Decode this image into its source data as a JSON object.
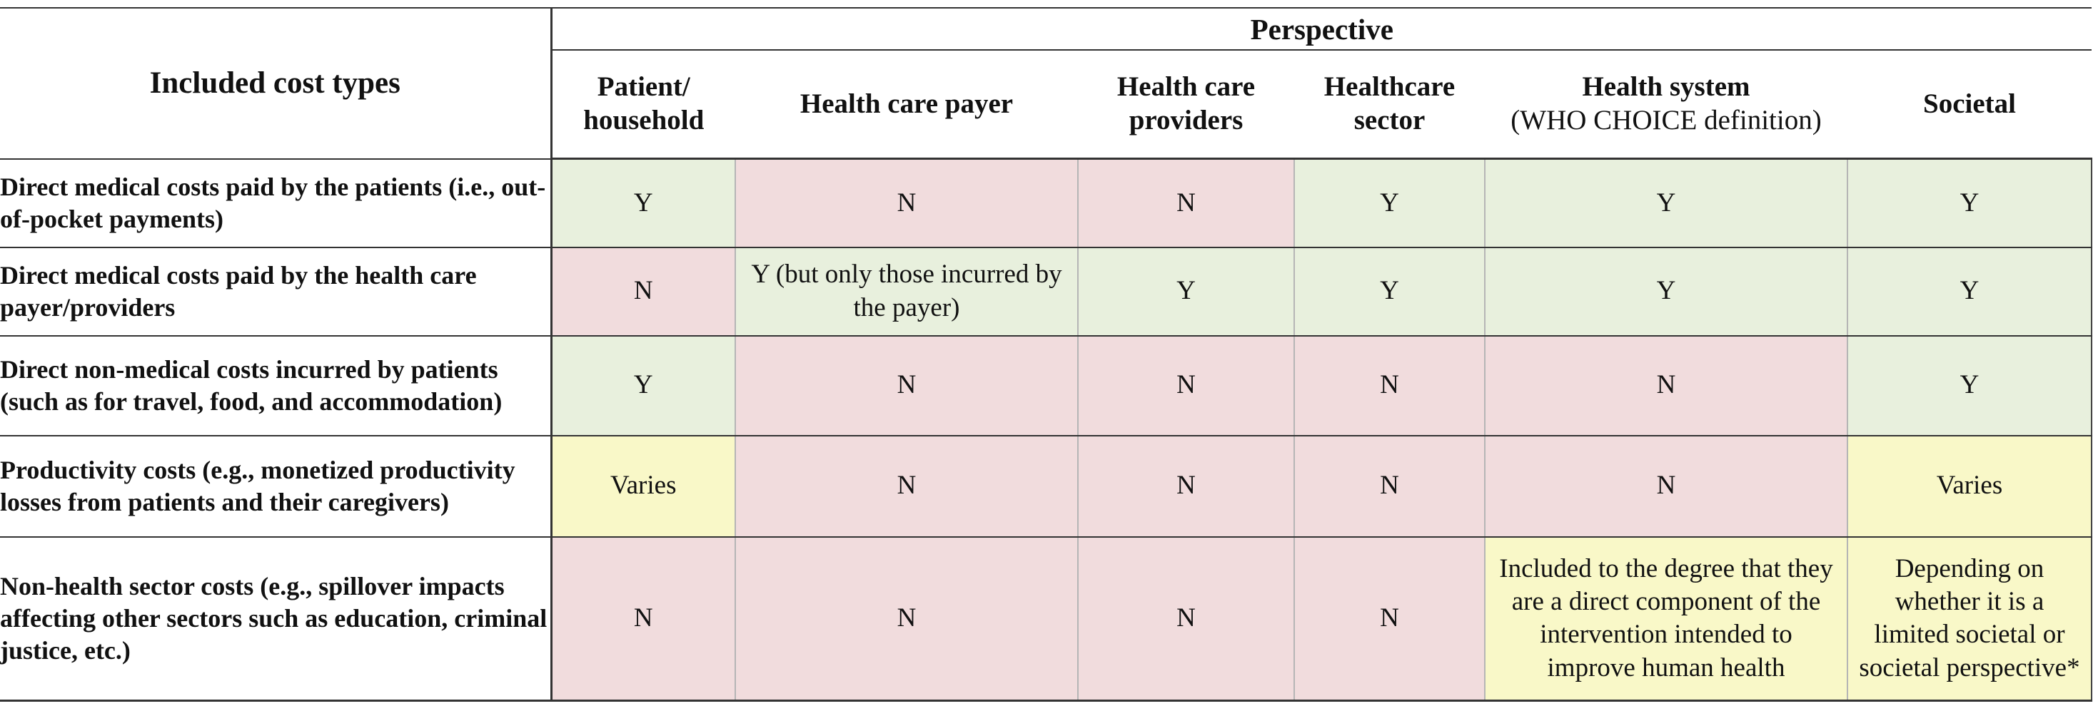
{
  "table": {
    "corner_label": "Included cost types",
    "perspective_label": "Perspective",
    "columns": [
      {
        "title": "Patient/ household",
        "subtitle": ""
      },
      {
        "title": "Health care payer",
        "subtitle": ""
      },
      {
        "title": "Health care providers",
        "subtitle": ""
      },
      {
        "title": "Healthcare sector",
        "subtitle": ""
      },
      {
        "title": "Health system",
        "subtitle": "(WHO CHOICE definition)"
      },
      {
        "title": "Societal",
        "subtitle": ""
      }
    ],
    "rows": [
      {
        "label": "Direct medical costs paid by the patients (i.e., out-of-pocket payments)",
        "cells": [
          {
            "text": "Y",
            "status": "yes"
          },
          {
            "text": "N",
            "status": "no"
          },
          {
            "text": "N",
            "status": "no"
          },
          {
            "text": "Y",
            "status": "yes"
          },
          {
            "text": "Y",
            "status": "yes"
          },
          {
            "text": "Y",
            "status": "yes"
          }
        ]
      },
      {
        "label": "Direct medical costs paid by the health care payer/providers",
        "cells": [
          {
            "text": "N",
            "status": "no"
          },
          {
            "text": "Y (but only those incurred by the payer)",
            "status": "yes"
          },
          {
            "text": "Y",
            "status": "yes"
          },
          {
            "text": "Y",
            "status": "yes"
          },
          {
            "text": "Y",
            "status": "yes"
          },
          {
            "text": "Y",
            "status": "yes"
          }
        ]
      },
      {
        "label": "Direct non-medical costs incurred by patients (such as for travel, food, and accommodation)",
        "cells": [
          {
            "text": "Y",
            "status": "yes"
          },
          {
            "text": "N",
            "status": "no"
          },
          {
            "text": "N",
            "status": "no"
          },
          {
            "text": "N",
            "status": "no"
          },
          {
            "text": "N",
            "status": "no"
          },
          {
            "text": "Y",
            "status": "yes"
          }
        ]
      },
      {
        "label": "Productivity costs (e.g., monetized productivity losses from patients and their caregivers)",
        "cells": [
          {
            "text": "Varies",
            "status": "varies"
          },
          {
            "text": "N",
            "status": "no"
          },
          {
            "text": "N",
            "status": "no"
          },
          {
            "text": "N",
            "status": "no"
          },
          {
            "text": "N",
            "status": "no"
          },
          {
            "text": "Varies",
            "status": "varies"
          }
        ]
      },
      {
        "label": "Non-health sector costs (e.g., spillover impacts affecting other sectors such as education, criminal justice, etc.)",
        "cells": [
          {
            "text": "N",
            "status": "no"
          },
          {
            "text": "N",
            "status": "no"
          },
          {
            "text": "N",
            "status": "no"
          },
          {
            "text": "N",
            "status": "no"
          },
          {
            "text": "Included to the degree that they are a direct component of the intervention intended to improve human health",
            "status": "varies"
          },
          {
            "text": "Depending on whether it is a limited societal or societal perspective*",
            "status": "varies"
          }
        ]
      }
    ],
    "status_colors": {
      "yes": "#e8f0dd",
      "no": "#f1dcdd",
      "varies": "#f9f8c8"
    }
  }
}
